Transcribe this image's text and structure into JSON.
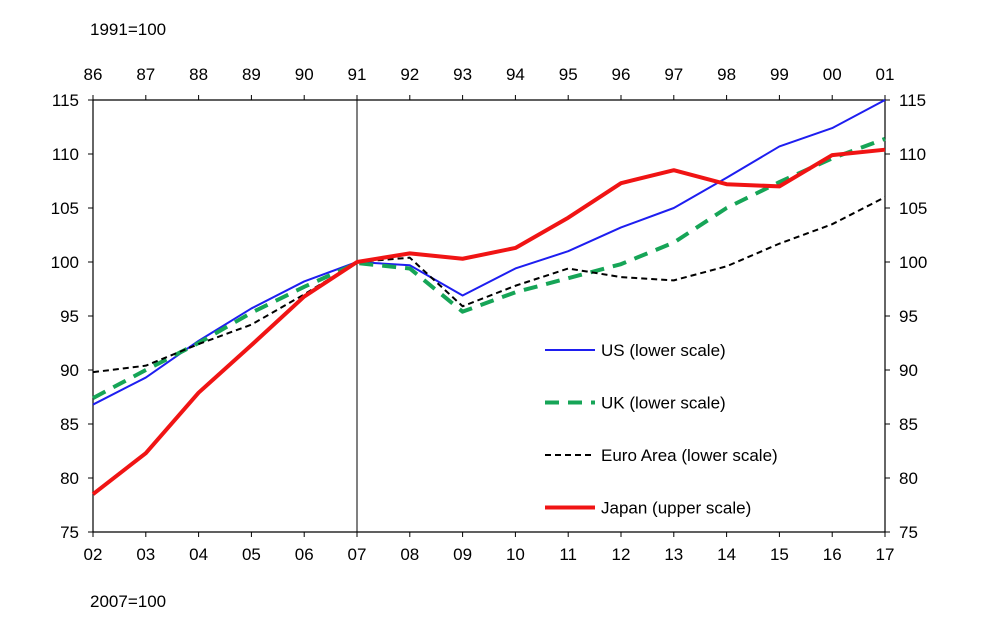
{
  "notes": {
    "top": "1991=100",
    "bottom": "2007=100"
  },
  "chart_data": {
    "type": "line",
    "y_left_range": [
      75,
      115
    ],
    "y_right_range": [
      75,
      115
    ],
    "y_ticks": [
      "75",
      "80",
      "85",
      "90",
      "95",
      "100",
      "105",
      "110",
      "115"
    ],
    "x_top_ticks": [
      "86",
      "87",
      "88",
      "89",
      "90",
      "91",
      "92",
      "93",
      "94",
      "95",
      "96",
      "97",
      "98",
      "99",
      "00",
      "01"
    ],
    "x_bottom_ticks": [
      "02",
      "03",
      "04",
      "05",
      "06",
      "07",
      "08",
      "09",
      "10",
      "11",
      "12",
      "13",
      "14",
      "15",
      "16",
      "17"
    ],
    "reference_line_at": "07",
    "grid": false,
    "legend_position": "bottom-right",
    "series": [
      {
        "name": "US (lower scale)",
        "axis": "lower",
        "color": "#1e1ef0",
        "style": "solid",
        "values": [
          86.8,
          89.3,
          92.7,
          95.7,
          98.2,
          100.0,
          99.7,
          96.9,
          99.4,
          101.0,
          103.2,
          105.0,
          107.8,
          110.7,
          112.4,
          115.0
        ]
      },
      {
        "name": "UK (lower scale)",
        "axis": "lower",
        "color": "#16a557",
        "style": "dashed",
        "values": [
          87.4,
          90.0,
          92.5,
          95.3,
          97.7,
          99.9,
          99.4,
          95.4,
          97.2,
          98.5,
          99.8,
          101.8,
          105.0,
          107.4,
          109.6,
          111.4
        ]
      },
      {
        "name": "Euro Area (lower scale)",
        "axis": "lower",
        "color": "#000000",
        "style": "dotted",
        "values": [
          89.8,
          90.4,
          92.4,
          94.2,
          97.0,
          100.0,
          100.4,
          95.9,
          97.8,
          99.4,
          98.6,
          98.3,
          99.6,
          101.7,
          103.5,
          106.0
        ]
      },
      {
        "name": "Japan (upper scale)",
        "axis": "upper",
        "color": "#f01414",
        "style": "solid-thick",
        "values": [
          78.5,
          82.3,
          87.9,
          92.3,
          96.8,
          100.0,
          100.8,
          100.3,
          101.3,
          104.1,
          107.3,
          108.5,
          107.2,
          107.0,
          109.9,
          110.4
        ]
      }
    ]
  }
}
